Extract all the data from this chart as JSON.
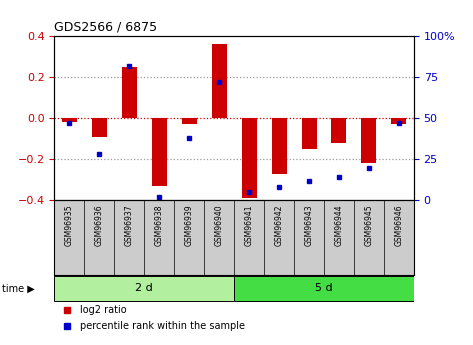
{
  "title": "GDS2566 / 6875",
  "samples": [
    "GSM96935",
    "GSM96936",
    "GSM96937",
    "GSM96938",
    "GSM96939",
    "GSM96940",
    "GSM96941",
    "GSM96942",
    "GSM96943",
    "GSM96944",
    "GSM96945",
    "GSM96946"
  ],
  "log2_ratio": [
    -0.02,
    -0.09,
    0.25,
    -0.33,
    -0.03,
    0.36,
    -0.39,
    -0.27,
    -0.15,
    -0.12,
    -0.22,
    -0.03
  ],
  "percentile_rank": [
    47,
    28,
    82,
    2,
    38,
    72,
    5,
    8,
    12,
    14,
    20,
    47
  ],
  "groups": [
    {
      "label": "2 d",
      "start": 0,
      "end": 6,
      "color": "#b2f0a0"
    },
    {
      "label": "5 d",
      "start": 6,
      "end": 12,
      "color": "#44dd44"
    }
  ],
  "bar_color": "#cc0000",
  "dot_color": "#0000cc",
  "ylim": [
    -0.4,
    0.4
  ],
  "y2lim": [
    0,
    100
  ],
  "yticks": [
    -0.4,
    -0.2,
    0.0,
    0.2,
    0.4
  ],
  "y2ticks": [
    0,
    25,
    50,
    75,
    100
  ],
  "y2ticklabels": [
    "0",
    "25",
    "50",
    "75",
    "100%"
  ],
  "bar_color_red": "#cc0000",
  "dot_color_blue": "#0000cc",
  "bg_color": "#ffffff",
  "plot_bg": "#ffffff",
  "xlabels_bg": "#cccccc",
  "font_size": 8,
  "bar_width": 0.5,
  "legend_items": [
    {
      "label": "log2 ratio",
      "color": "#cc0000"
    },
    {
      "label": "percentile rank within the sample",
      "color": "#0000cc"
    }
  ]
}
